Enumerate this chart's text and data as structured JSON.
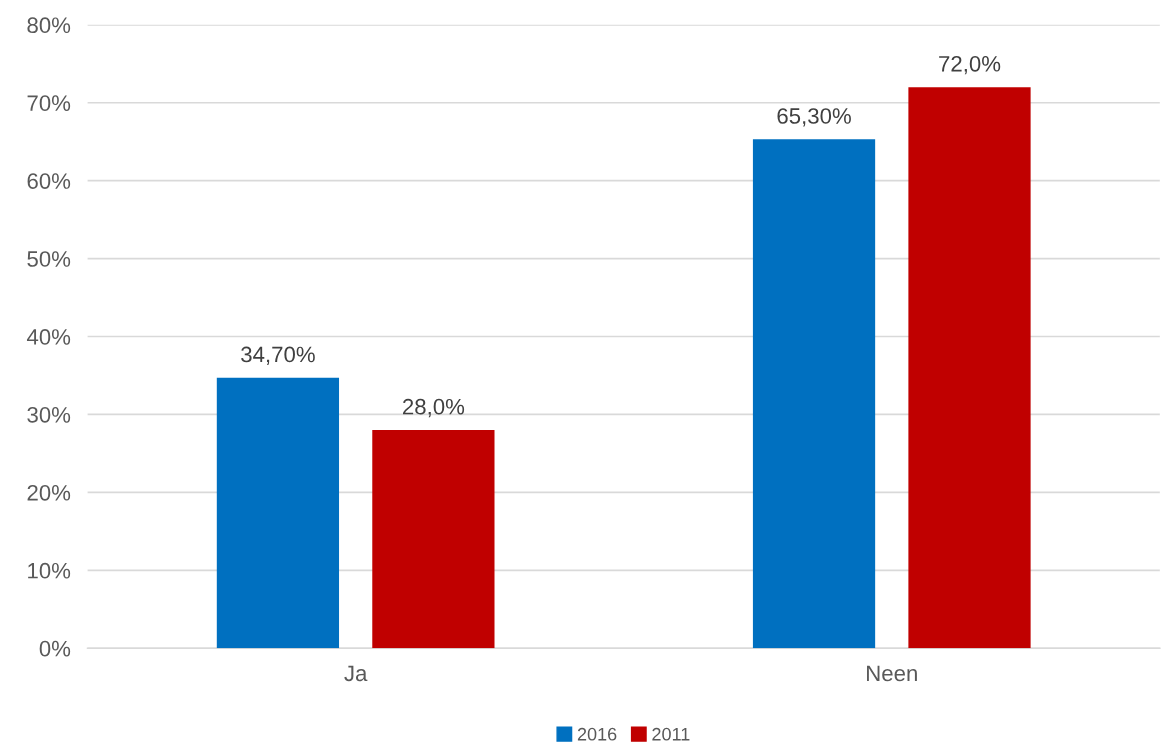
{
  "chart_data": {
    "type": "bar",
    "categories": [
      "Ja",
      "Neen"
    ],
    "series": [
      {
        "name": "2016",
        "color": "#0070c0",
        "values": [
          34.7,
          65.3
        ],
        "value_labels": [
          "34,70%",
          "65,30%"
        ]
      },
      {
        "name": "2011",
        "color": "#c00000",
        "values": [
          28.0,
          72.0
        ],
        "value_labels": [
          "28,0%",
          "72,0%"
        ]
      }
    ],
    "ylim": [
      0,
      80
    ],
    "yticks": [
      {
        "value": 0,
        "label": "0%"
      },
      {
        "value": 10,
        "label": "10%"
      },
      {
        "value": 20,
        "label": "20%"
      },
      {
        "value": 30,
        "label": "30%"
      },
      {
        "value": 40,
        "label": "40%"
      },
      {
        "value": 50,
        "label": "50%"
      },
      {
        "value": 60,
        "label": "60%"
      },
      {
        "value": 70,
        "label": "70%"
      },
      {
        "value": 80,
        "label": "80%"
      }
    ],
    "grid": "y",
    "legend": "bottom"
  }
}
